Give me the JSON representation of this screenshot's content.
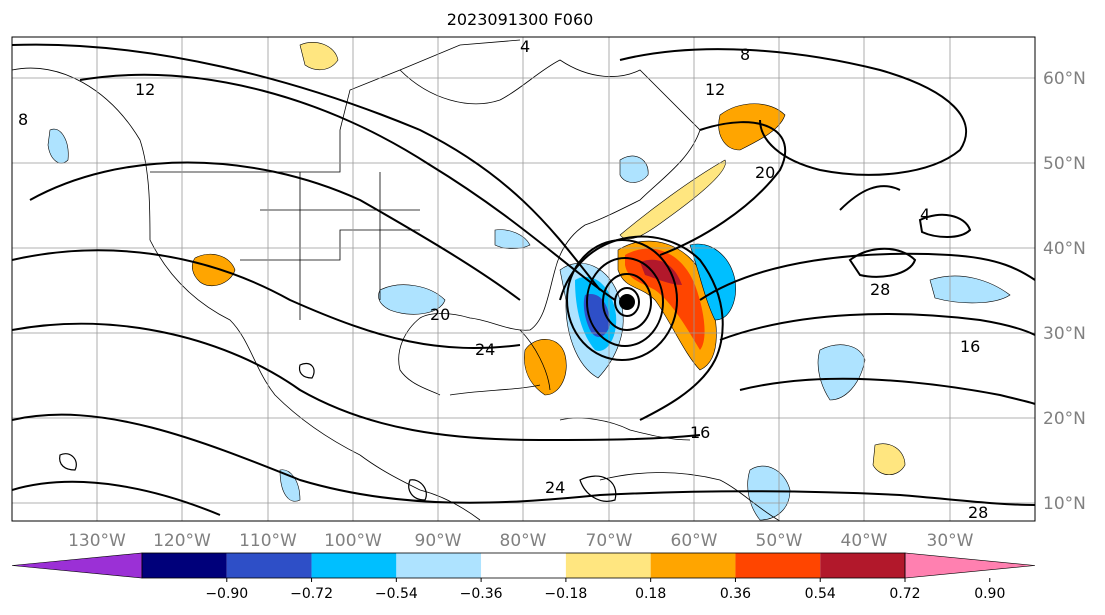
{
  "title": "2023091300 F060",
  "longitude_labels": [
    "130°W",
    "120°W",
    "110°W",
    "100°W",
    "90°W",
    "80°W",
    "70°W",
    "60°W",
    "50°W",
    "40°W",
    "30°W"
  ],
  "latitude_labels": [
    "60°N",
    "50°N",
    "40°N",
    "30°N",
    "20°N",
    "10°N"
  ],
  "colorbar": {
    "colors": [
      "#9b30d6",
      "#00007a",
      "#2e4fc7",
      "#00bfff",
      "#aee3ff",
      "#ffffff",
      "#ffe680",
      "#ffa500",
      "#ff4500",
      "#b2182b",
      "#ff80b0"
    ],
    "labels": [
      "−0.90",
      "−0.72",
      "−0.54",
      "−0.36",
      "−0.18",
      "0.18",
      "0.36",
      "0.54",
      "0.72",
      "0.90"
    ]
  },
  "contour_labels": [
    "4",
    "8",
    "12",
    "16",
    "20",
    "24",
    "28"
  ],
  "storm_marker": {
    "lon": "-68",
    "lat": "34"
  }
}
